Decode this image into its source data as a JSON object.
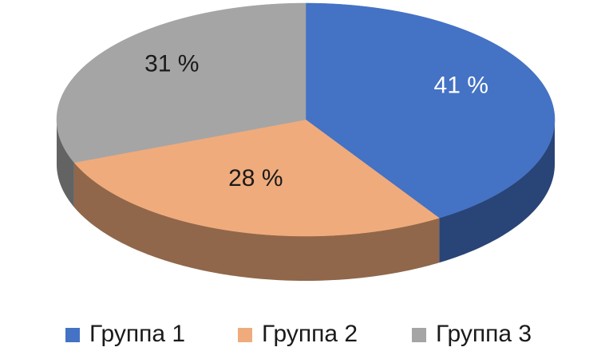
{
  "chart_data": {
    "type": "pie",
    "categories": [
      "Группа 1",
      "Группа 2",
      "Группа 3"
    ],
    "values": [
      41,
      28,
      31
    ],
    "value_labels": [
      "41 %",
      "28 %",
      "31 %"
    ],
    "colors": [
      "#4472c4",
      "#f0ab7c",
      "#a5a5a5"
    ],
    "label_colors": [
      "#ffffff",
      "#1a1a1a",
      "#1a1a1a"
    ],
    "legend": "bottom"
  }
}
